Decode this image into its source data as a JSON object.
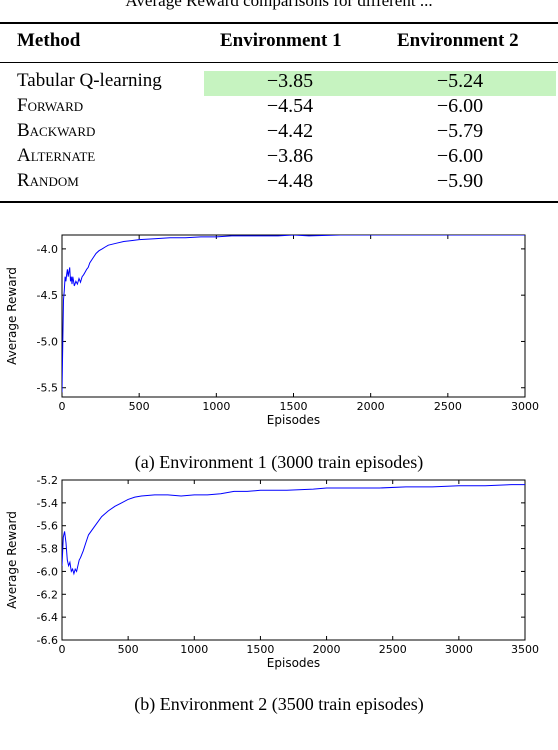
{
  "clipped_caption": "Average Reward comparisons for different ...",
  "table": {
    "headers": [
      "Method",
      "Environment 1",
      "Environment 2"
    ],
    "rows": [
      {
        "method": "Tabular Q-learning",
        "env1": "−3.85",
        "env2": "−5.24"
      },
      {
        "method": "Forward",
        "env1": "−4.54",
        "env2": "−6.00"
      },
      {
        "method": "Backward",
        "env1": "−4.42",
        "env2": "−5.79"
      },
      {
        "method": "Alternate",
        "env1": "−3.86",
        "env2": "−6.00"
      },
      {
        "method": "Random",
        "env1": "−4.48",
        "env2": "−5.90"
      }
    ],
    "highlight_color": "#c6f3c0"
  },
  "chart_data": [
    {
      "type": "line",
      "xlabel": "Episodes",
      "ylabel": "Average Reward",
      "xlim": [
        0,
        3000
      ],
      "ylim": [
        -5.6,
        -3.85
      ],
      "xticks": [
        "0",
        "500",
        "1000",
        "1500",
        "2000",
        "2500",
        "3000"
      ],
      "yticks": [
        "-4.0",
        "-4.5",
        "-5.0",
        "-5.5"
      ],
      "ytick_values": [
        -4.0,
        -4.5,
        -5.0,
        -5.5
      ],
      "line_color": "#0000ff",
      "x": [
        0,
        5,
        10,
        15,
        20,
        25,
        30,
        35,
        40,
        45,
        50,
        55,
        60,
        65,
        70,
        75,
        80,
        90,
        100,
        110,
        120,
        130,
        140,
        150,
        160,
        170,
        180,
        200,
        220,
        240,
        260,
        280,
        300,
        350,
        400,
        450,
        500,
        600,
        700,
        800,
        900,
        1000,
        1100,
        1200,
        1300,
        1400,
        1500,
        1600,
        1800,
        2000,
        2200,
        2400,
        2600,
        2800,
        3000
      ],
      "y": [
        -5.55,
        -5.0,
        -4.55,
        -4.45,
        -4.3,
        -4.35,
        -4.28,
        -4.22,
        -4.3,
        -4.25,
        -4.2,
        -4.35,
        -4.3,
        -4.38,
        -4.3,
        -4.35,
        -4.4,
        -4.35,
        -4.38,
        -4.32,
        -4.36,
        -4.3,
        -4.28,
        -4.25,
        -4.22,
        -4.2,
        -4.15,
        -4.1,
        -4.05,
        -4.02,
        -4.0,
        -3.98,
        -3.96,
        -3.94,
        -3.92,
        -3.91,
        -3.9,
        -3.89,
        -3.88,
        -3.88,
        -3.87,
        -3.87,
        -3.86,
        -3.86,
        -3.86,
        -3.86,
        -3.85,
        -3.86,
        -3.85,
        -3.85,
        -3.85,
        -3.85,
        -3.85,
        -3.85,
        -3.85
      ],
      "caption": "(a) Environment 1 (3000 train episodes)"
    },
    {
      "type": "line",
      "xlabel": "Episodes",
      "ylabel": "Average Reward",
      "xlim": [
        0,
        3500
      ],
      "ylim": [
        -6.6,
        -5.2
      ],
      "xticks": [
        "0",
        "500",
        "1000",
        "1500",
        "2000",
        "2500",
        "3000",
        "3500"
      ],
      "yticks": [
        "-5.2",
        "-5.4",
        "-5.6",
        "-5.8",
        "-6.0",
        "-6.2",
        "-6.4",
        "-6.6"
      ],
      "ytick_values": [
        -5.2,
        -5.4,
        -5.6,
        -5.8,
        -6.0,
        -6.2,
        -6.4,
        -6.6
      ],
      "line_color": "#0000ff",
      "x": [
        0,
        10,
        20,
        30,
        40,
        50,
        60,
        70,
        80,
        90,
        100,
        110,
        120,
        130,
        140,
        160,
        180,
        200,
        250,
        300,
        350,
        400,
        450,
        500,
        550,
        600,
        700,
        800,
        900,
        1000,
        1100,
        1200,
        1300,
        1400,
        1500,
        1700,
        1900,
        2000,
        2200,
        2400,
        2600,
        2800,
        3000,
        3200,
        3400,
        3500
      ],
      "y": [
        -5.95,
        -5.7,
        -5.65,
        -5.75,
        -5.9,
        -5.95,
        -5.92,
        -6.0,
        -5.98,
        -6.02,
        -5.98,
        -6.0,
        -5.95,
        -5.9,
        -5.88,
        -5.82,
        -5.75,
        -5.68,
        -5.6,
        -5.52,
        -5.47,
        -5.43,
        -5.4,
        -5.37,
        -5.35,
        -5.34,
        -5.33,
        -5.33,
        -5.34,
        -5.33,
        -5.33,
        -5.32,
        -5.3,
        -5.3,
        -5.29,
        -5.29,
        -5.28,
        -5.27,
        -5.27,
        -5.27,
        -5.26,
        -5.26,
        -5.25,
        -5.25,
        -5.24,
        -5.24
      ],
      "caption": "(b) Environment 2 (3500 train episodes)"
    }
  ]
}
